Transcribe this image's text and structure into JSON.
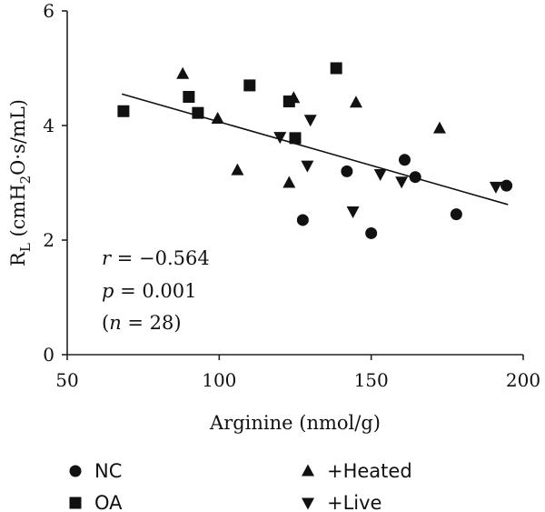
{
  "chart_data": {
    "type": "scatter",
    "xlabel": "Arginine (nmol/g)",
    "ylabel": {
      "main": "R",
      "sub": "L",
      "rest_open": " (cmH",
      "sub2": "2",
      "rest_close": "O·s/mL)"
    },
    "xlim": [
      50,
      200
    ],
    "ylim": [
      0,
      6
    ],
    "xticks": [
      50,
      100,
      150,
      200
    ],
    "yticks": [
      0,
      2,
      4,
      6
    ],
    "grid": false,
    "legend_position": "bottom",
    "series": [
      {
        "name": "NC",
        "marker": "circle",
        "points": [
          [
            127.5,
            2.35
          ],
          [
            142,
            3.2
          ],
          [
            150,
            2.12
          ],
          [
            161,
            3.4
          ],
          [
            164.5,
            3.1
          ],
          [
            178,
            2.45
          ],
          [
            194.5,
            2.95
          ]
        ]
      },
      {
        "name": "OA",
        "marker": "square",
        "points": [
          [
            68.5,
            4.25
          ],
          [
            90,
            4.5
          ],
          [
            93,
            4.22
          ],
          [
            110,
            4.7
          ],
          [
            123,
            4.42
          ],
          [
            125,
            3.78
          ],
          [
            138.5,
            5.0
          ]
        ]
      },
      {
        "name": "+Heated",
        "marker": "triangle-up",
        "points": [
          [
            88,
            4.9
          ],
          [
            99.5,
            4.12
          ],
          [
            106,
            3.22
          ],
          [
            123,
            3.0
          ],
          [
            124.5,
            4.48
          ],
          [
            145,
            4.4
          ],
          [
            172.5,
            3.95
          ]
        ]
      },
      {
        "name": "+Live",
        "marker": "triangle-down",
        "points": [
          [
            120,
            3.8
          ],
          [
            129,
            3.3
          ],
          [
            130,
            4.1
          ],
          [
            144,
            2.5
          ],
          [
            153,
            3.15
          ],
          [
            160,
            3.02
          ],
          [
            191,
            2.93
          ]
        ]
      }
    ],
    "trendline": {
      "x": [
        68,
        195
      ],
      "y": [
        4.55,
        2.62
      ]
    },
    "annotations": {
      "r": {
        "symbol": "r",
        "text": " = −0.564"
      },
      "p": {
        "symbol": "p",
        "text": " = 0.001"
      },
      "n": {
        "open": "(",
        "symbol": "n",
        "text": " = 28)"
      }
    },
    "colors": {
      "marker": "#111111",
      "line": "#111111",
      "axis": "#222222"
    }
  }
}
